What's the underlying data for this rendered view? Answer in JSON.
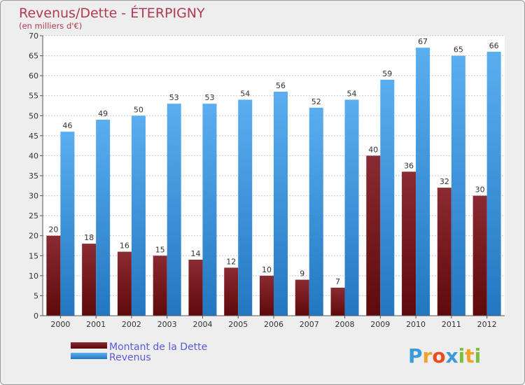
{
  "colors": {
    "debt_top": "#8b2a32",
    "debt_bottom": "#5e0a0a",
    "revenue_top": "#5aaef0",
    "revenue_bottom": "#2277c0",
    "title": "#b03a52",
    "legend_text": "#5a5ae0"
  },
  "chart_data": {
    "type": "bar",
    "title": "Revenus/Dette - ÉTERPIGNY",
    "subtitle": "(en milliers d'€)",
    "categories": [
      "2000",
      "2001",
      "2002",
      "2003",
      "2004",
      "2005",
      "2006",
      "2007",
      "2008",
      "2009",
      "2010",
      "2011",
      "2012"
    ],
    "series": [
      {
        "name": "Montant de la Dette",
        "values": [
          20,
          18,
          16,
          15,
          14,
          12,
          10,
          9,
          7,
          40,
          36,
          32,
          30
        ]
      },
      {
        "name": "Revenus",
        "values": [
          46,
          49,
          50,
          53,
          53,
          54,
          56,
          52,
          54,
          59,
          67,
          65,
          66
        ]
      }
    ],
    "ylim": [
      0,
      70
    ],
    "yticks": [
      0,
      5,
      10,
      15,
      20,
      25,
      30,
      35,
      40,
      45,
      50,
      55,
      60,
      65,
      70
    ],
    "grid": true,
    "legend_position": "bottom-left"
  },
  "logo": {
    "letters": [
      "P",
      "r",
      "o",
      "x",
      "i",
      "t",
      "i"
    ],
    "colors": [
      "#3d9ad8",
      "#f2a22a",
      "#e84e1b",
      "#3d9ad8",
      "#7cbf3d",
      "#f2a22a",
      "#7cbf3d"
    ]
  }
}
